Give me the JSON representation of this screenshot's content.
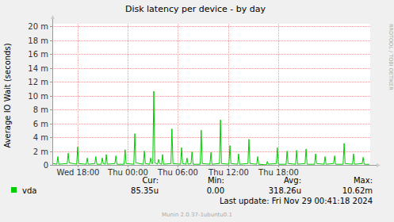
{
  "chart_data": {
    "type": "line",
    "title": "Disk latency per device - by day",
    "y_label": "Average IO Wait (seconds)",
    "side_text": "RRDTOOL / TOBI OETIKER",
    "xlim": [
      15,
      53
    ],
    "xticks": [
      {
        "value": 18,
        "label": "Wed 18:00"
      },
      {
        "value": 24,
        "label": "Thu 00:00"
      },
      {
        "value": 30,
        "label": "Thu 06:00"
      },
      {
        "value": 36,
        "label": "Thu 12:00"
      },
      {
        "value": 42,
        "label": "Thu 18:00"
      }
    ],
    "ylim": [
      0,
      0.02
    ],
    "yticks": [
      0,
      {
        "value": 0.002,
        "label": "2 m"
      },
      {
        "value": 0.004,
        "label": "4 m"
      },
      {
        "value": 0.006,
        "label": "6 m"
      },
      {
        "value": 0.008,
        "label": "8 m"
      },
      {
        "value": 0.01,
        "label": "10 m"
      },
      {
        "value": 0.012,
        "label": "12 m"
      },
      {
        "value": 0.014,
        "label": "14 m"
      },
      {
        "value": 0.016,
        "label": "16 m"
      },
      {
        "value": 0.018,
        "label": "18 m"
      },
      {
        "value": 0.02,
        "label": "20 m"
      }
    ],
    "grid": true,
    "x": [
      15.1,
      15.54,
      15.66,
      15.78,
      16.78,
      16.9,
      17.02,
      17.91,
      18.03,
      18.15,
      19.05,
      19.17,
      19.29,
      20.08,
      20.2,
      20.32,
      20.85,
      20.97,
      21.09,
      21.33,
      21.45,
      21.57,
      22.48,
      22.6,
      22.72,
      23.58,
      23.7,
      23.82,
      24.74,
      24.86,
      24.98,
      25.88,
      26.0,
      26.12,
      26.63,
      26.75,
      26.87,
      27.01,
      27.13,
      27.25,
      27.58,
      27.7,
      27.82,
      28.06,
      28.18,
      28.3,
      29.18,
      29.3,
      29.42,
      30.33,
      30.45,
      30.57,
      30.98,
      31.1,
      31.22,
      31.58,
      31.7,
      31.82,
      32.68,
      32.8,
      32.92,
      33.84,
      33.96,
      34.08,
      34.98,
      35.1,
      35.22,
      36.11,
      36.23,
      36.35,
      37.15,
      37.27,
      37.39,
      38.38,
      38.5,
      38.62,
      39.43,
      39.55,
      39.67,
      40.58,
      40.7,
      40.82,
      41.78,
      41.9,
      42.02,
      42.94,
      43.06,
      43.18,
      44.08,
      44.2,
      44.32,
      45.21,
      45.33,
      45.45,
      46.35,
      46.47,
      46.59,
      47.48,
      47.6,
      47.72,
      48.62,
      48.74,
      48.86,
      49.76,
      49.88,
      50.0,
      50.88,
      51.0,
      51.12,
      52.04,
      52.16,
      52.28,
      52.9
    ],
    "series": [
      {
        "name": "vda",
        "color": "#00cc00",
        "values": [
          0.0002,
          0.0001,
          0.0012,
          0.0001,
          0.0002,
          0.0017,
          0.0003,
          0.0001,
          0.0026,
          0.0002,
          0.0001,
          0.001,
          0.0001,
          0.0002,
          0.0012,
          0.0001,
          0.0001,
          0.001,
          0.0002,
          0.0001,
          0.0015,
          0.0001,
          0.0002,
          0.0013,
          0.0001,
          0.0001,
          0.0022,
          0.0002,
          0.0001,
          0.0045,
          0.0003,
          0.0001,
          0.002,
          0.0002,
          0.0001,
          0.001,
          0.0002,
          0.0002,
          0.01062,
          0.0003,
          0.0001,
          0.0008,
          0.0002,
          0.0001,
          0.0015,
          0.0001,
          0.0002,
          0.0052,
          0.0002,
          0.0001,
          0.0025,
          0.0002,
          0.0001,
          0.001,
          0.0001,
          0.0002,
          0.0019,
          0.0001,
          0.0001,
          0.005,
          0.0002,
          0.0001,
          0.0018,
          0.0001,
          0.0002,
          0.0065,
          0.0002,
          0.0001,
          0.0028,
          0.0002,
          0.0001,
          0.0016,
          0.0001,
          0.0002,
          0.0037,
          0.0002,
          0.0001,
          0.0012,
          0.0001,
          0,
          0.0005,
          0.0001,
          0.0002,
          0.0025,
          0.0001,
          0.0001,
          0.002,
          0.0002,
          0.0001,
          0.0021,
          0.0001,
          0.0002,
          0.0023,
          0.0001,
          0.0001,
          0.0016,
          0.0002,
          0.0001,
          0.0012,
          0.0001,
          0.0002,
          0.0013,
          0.0001,
          0.0001,
          0.0031,
          0.0002,
          0.0001,
          0.0016,
          0.0001,
          0.0002,
          0.0011,
          0.0001,
          8.535e-05
        ],
        "stats": [
          "85.35u",
          "0.00",
          "318.26u",
          "10.62m"
        ]
      }
    ],
    "stat_labels": [
      "Cur:",
      "Min:",
      "Avg:",
      "Max:"
    ],
    "footer": "Last update: Fri Nov 29 00:41:18 2024",
    "credit": "Munin 2.0.37-1ubuntu0.1"
  }
}
